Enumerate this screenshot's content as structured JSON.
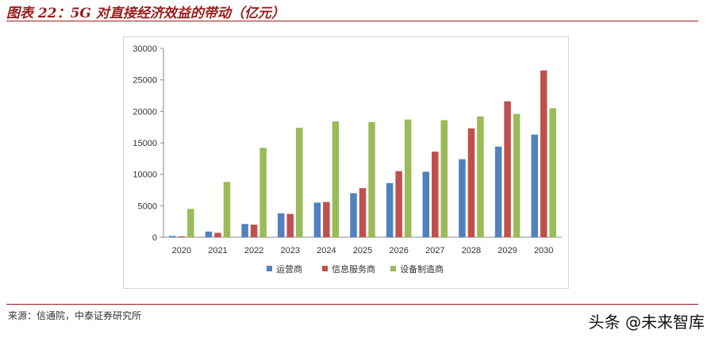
{
  "figure_title": "图表 22：5G 对直接经济效益的带动（亿元）",
  "source_note": "来源：信通院，中泰证券研究所",
  "watermark": "头条 @未来智库",
  "colors": {
    "accent": "#9b1c1c",
    "series": [
      "#4f81bd",
      "#c0504d",
      "#9bbb59"
    ]
  },
  "chart_data": {
    "type": "bar",
    "title": "",
    "xlabel": "",
    "ylabel": "",
    "categories": [
      "2020",
      "2021",
      "2022",
      "2023",
      "2024",
      "2025",
      "2026",
      "2027",
      "2028",
      "2029",
      "2030"
    ],
    "ylim": [
      0,
      30000
    ],
    "yticks": [
      0,
      5000,
      10000,
      15000,
      20000,
      25000,
      30000
    ],
    "grid": false,
    "legend_position": "bottom",
    "series": [
      {
        "name": "运营商",
        "values": [
          200,
          900,
          2100,
          3800,
          5500,
          7000,
          8600,
          10400,
          12400,
          14400,
          16300
        ]
      },
      {
        "name": "信息服务商",
        "values": [
          150,
          700,
          2000,
          3700,
          5600,
          7800,
          10500,
          13600,
          17300,
          21600,
          26500
        ]
      },
      {
        "name": "设备制造商",
        "values": [
          4500,
          8800,
          14200,
          17400,
          18400,
          18300,
          18700,
          18600,
          19200,
          19600,
          20500
        ]
      }
    ]
  }
}
